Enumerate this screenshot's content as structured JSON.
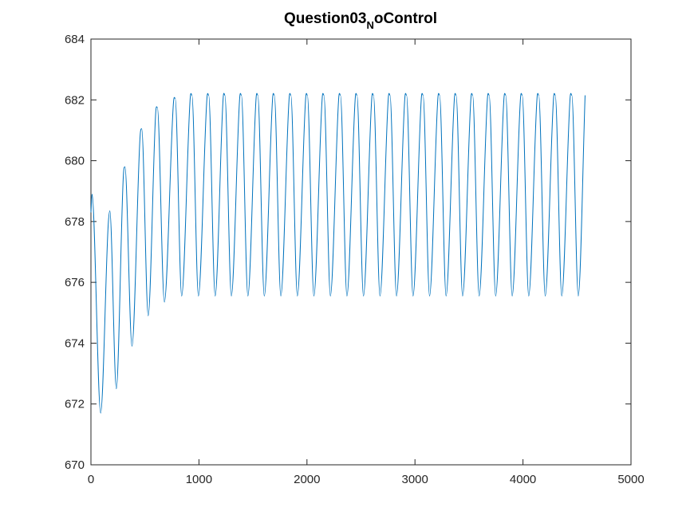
{
  "chart_data": {
    "type": "line",
    "title": {
      "prefix": "Question03",
      "subscript": "N",
      "suffix": "oControl"
    },
    "xlabel": "",
    "ylabel": "",
    "xlim": [
      0,
      5000
    ],
    "ylim": [
      670,
      684
    ],
    "xticks": [
      0,
      1000,
      2000,
      3000,
      4000,
      5000
    ],
    "yticks": [
      670,
      672,
      674,
      676,
      678,
      680,
      682,
      684
    ],
    "xtick_labels": [
      "0",
      "1000",
      "2000",
      "3000",
      "4000",
      "5000"
    ],
    "ytick_labels": [
      "670",
      "672",
      "674",
      "676",
      "678",
      "680",
      "682",
      "684"
    ],
    "grid": false,
    "legend": "none",
    "line_color": "#0072BD",
    "axis_color": "#262626",
    "series": [
      {
        "x": [
          0,
          10,
          90,
          160,
          175,
          235,
          300,
          315,
          380,
          455,
          470,
          530,
          600,
          615,
          680,
          765,
          780,
          840,
          920,
          935,
          995,
          1075,
          1090,
          1150,
          1225,
          1240,
          1300,
          1378,
          1393,
          1453,
          1530,
          1545,
          1605,
          1683,
          1698,
          1758,
          1836,
          1851,
          1911,
          1989,
          2004,
          2064,
          2142,
          2157,
          2217,
          2295,
          2310,
          2370,
          2448,
          2463,
          2523,
          2601,
          2616,
          2676,
          2754,
          2769,
          2829,
          2907,
          2922,
          2982,
          3060,
          3075,
          3135,
          3213,
          3228,
          3288,
          3366,
          3381,
          3441,
          3519,
          3534,
          3594,
          3672,
          3687,
          3747,
          3825,
          3840,
          3900,
          3978,
          3993,
          4053,
          4131,
          4146,
          4206,
          4284,
          4299,
          4359,
          4437,
          4452,
          4512,
          4575
        ],
        "y": [
          678.3,
          678.9,
          671.7,
          677.9,
          678.35,
          672.5,
          679.5,
          679.8,
          673.9,
          680.8,
          681.05,
          674.9,
          681.6,
          681.75,
          675.35,
          681.95,
          682.05,
          675.55,
          682.1,
          682.15,
          675.55,
          682.1,
          682.15,
          675.55,
          682.1,
          682.15,
          675.55,
          682.1,
          682.15,
          675.55,
          682.1,
          682.15,
          675.55,
          682.1,
          682.15,
          675.55,
          682.1,
          682.15,
          675.55,
          682.1,
          682.15,
          675.55,
          682.1,
          682.15,
          675.55,
          682.1,
          682.15,
          675.55,
          682.1,
          682.15,
          675.55,
          682.1,
          682.15,
          675.55,
          682.1,
          682.15,
          675.55,
          682.1,
          682.15,
          675.55,
          682.1,
          682.15,
          675.55,
          682.1,
          682.15,
          675.55,
          682.1,
          682.15,
          675.55,
          682.1,
          682.15,
          675.55,
          682.1,
          682.15,
          675.55,
          682.1,
          682.15,
          675.55,
          682.1,
          682.15,
          675.55,
          682.1,
          682.15,
          675.55,
          682.1,
          682.15,
          675.55,
          682.1,
          682.15,
          675.55,
          682.15
        ]
      }
    ]
  }
}
